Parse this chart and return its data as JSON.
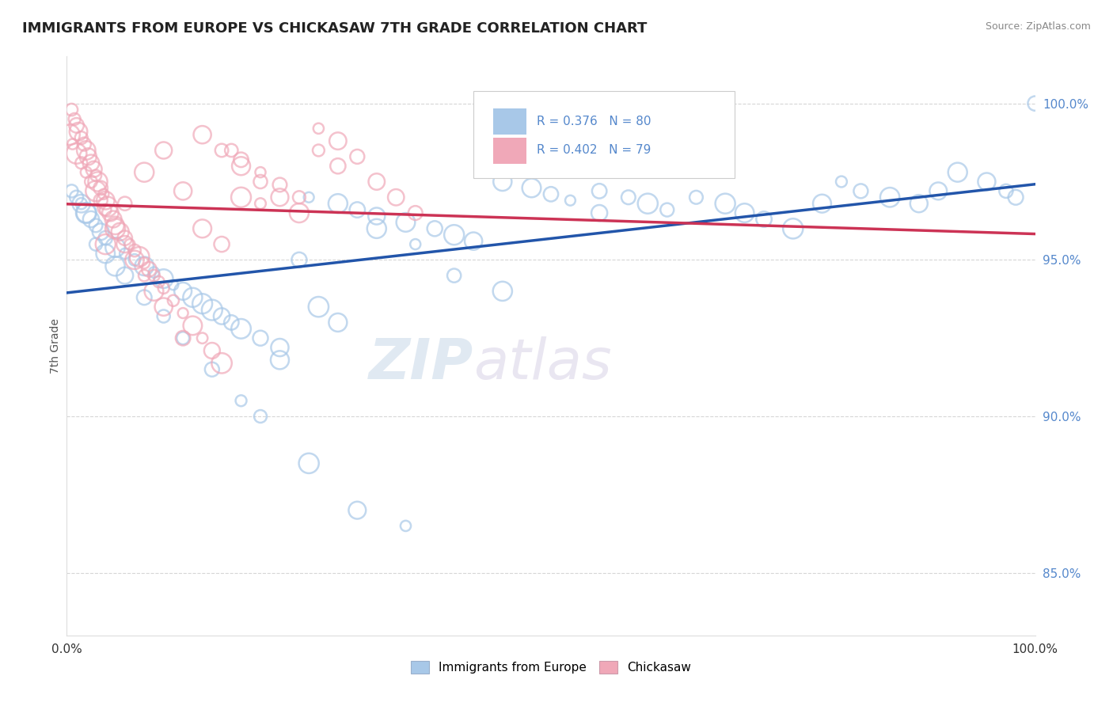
{
  "title": "IMMIGRANTS FROM EUROPE VS CHICKASAW 7TH GRADE CORRELATION CHART",
  "source": "Source: ZipAtlas.com",
  "ylabel": "7th Grade",
  "legend_blue_label": "Immigrants from Europe",
  "legend_pink_label": "Chickasaw",
  "R_blue": 0.376,
  "N_blue": 80,
  "R_pink": 0.402,
  "N_pink": 79,
  "blue_color": "#a8c8e8",
  "blue_edge_color": "#a8c8e8",
  "pink_color": "#f0a8b8",
  "pink_edge_color": "#f0a8b8",
  "blue_line_color": "#2255aa",
  "pink_line_color": "#cc3355",
  "ytick_color": "#5588cc",
  "watermark_zip": "ZIP",
  "watermark_atlas": "atlas",
  "blue_x": [
    1.5,
    2.0,
    2.5,
    3.0,
    3.5,
    4.0,
    5.0,
    6.0,
    7.0,
    8.0,
    9.0,
    10.0,
    11.0,
    12.0,
    13.0,
    14.0,
    15.0,
    16.0,
    17.0,
    18.0,
    20.0,
    22.0,
    25.0,
    28.0,
    30.0,
    32.0,
    35.0,
    38.0,
    40.0,
    42.0,
    45.0,
    48.0,
    50.0,
    52.0,
    55.0,
    58.0,
    60.0,
    62.0,
    65.0,
    68.0,
    70.0,
    72.0,
    75.0,
    78.0,
    80.0,
    82.0,
    85.0,
    88.0,
    90.0,
    92.0,
    95.0,
    97.0,
    98.0,
    100.0,
    0.5,
    1.0,
    1.5,
    2.0,
    3.0,
    4.0,
    5.0,
    6.0,
    8.0,
    10.0,
    12.0,
    15.0,
    18.0,
    20.0,
    25.0,
    30.0,
    35.0,
    40.0,
    22.0,
    26.0,
    24.0,
    28.0,
    32.0,
    36.0,
    45.0,
    55.0
  ],
  "blue_y": [
    96.8,
    96.5,
    96.3,
    96.1,
    95.9,
    95.7,
    95.4,
    95.2,
    95.0,
    94.8,
    94.6,
    94.4,
    94.2,
    94.0,
    93.8,
    93.6,
    93.4,
    93.2,
    93.0,
    92.8,
    92.5,
    92.2,
    97.0,
    96.8,
    96.6,
    96.4,
    96.2,
    96.0,
    95.8,
    95.6,
    97.5,
    97.3,
    97.1,
    96.9,
    97.2,
    97.0,
    96.8,
    96.6,
    97.0,
    96.8,
    96.5,
    96.3,
    96.0,
    96.8,
    97.5,
    97.2,
    97.0,
    96.8,
    97.2,
    97.8,
    97.5,
    97.2,
    97.0,
    100.0,
    97.2,
    97.0,
    96.8,
    96.5,
    95.5,
    95.2,
    94.8,
    94.5,
    93.8,
    93.2,
    92.5,
    91.5,
    90.5,
    90.0,
    88.5,
    87.0,
    86.5,
    94.5,
    91.8,
    93.5,
    95.0,
    93.0,
    96.0,
    95.5,
    94.0,
    96.5
  ],
  "pink_x": [
    0.5,
    0.8,
    1.0,
    1.2,
    1.5,
    1.8,
    2.0,
    2.2,
    2.5,
    2.8,
    3.0,
    3.2,
    3.5,
    3.8,
    4.0,
    4.2,
    4.5,
    4.8,
    5.0,
    5.5,
    6.0,
    6.5,
    7.0,
    7.5,
    8.0,
    8.5,
    9.0,
    9.5,
    10.0,
    11.0,
    12.0,
    13.0,
    14.0,
    15.0,
    16.0,
    17.0,
    18.0,
    20.0,
    22.0,
    24.0,
    26.0,
    28.0,
    0.3,
    0.6,
    1.0,
    1.5,
    2.0,
    2.5,
    3.0,
    3.5,
    4.0,
    5.0,
    6.0,
    7.0,
    8.0,
    9.0,
    10.0,
    12.0,
    14.0,
    16.0,
    18.0,
    20.0,
    22.0,
    24.0,
    26.0,
    28.0,
    30.0,
    32.0,
    34.0,
    36.0,
    4.0,
    6.0,
    8.0,
    10.0,
    12.0,
    14.0,
    16.0,
    18.0,
    20.0
  ],
  "pink_y": [
    99.8,
    99.5,
    99.3,
    99.1,
    98.9,
    98.7,
    98.5,
    98.3,
    98.1,
    97.9,
    97.7,
    97.5,
    97.3,
    97.1,
    96.9,
    96.7,
    96.5,
    96.3,
    96.1,
    95.9,
    95.7,
    95.5,
    95.3,
    95.1,
    94.9,
    94.7,
    94.5,
    94.3,
    94.1,
    93.7,
    93.3,
    92.9,
    92.5,
    92.1,
    91.7,
    98.5,
    98.2,
    97.8,
    97.4,
    97.0,
    98.5,
    98.0,
    99.0,
    98.7,
    98.4,
    98.1,
    97.8,
    97.5,
    97.2,
    96.9,
    96.6,
    96.0,
    95.5,
    95.0,
    94.5,
    94.0,
    93.5,
    92.5,
    99.0,
    98.5,
    98.0,
    97.5,
    97.0,
    96.5,
    99.2,
    98.8,
    98.3,
    97.5,
    97.0,
    96.5,
    95.5,
    96.8,
    97.8,
    98.5,
    97.2,
    96.0,
    95.5,
    97.0,
    96.8
  ]
}
